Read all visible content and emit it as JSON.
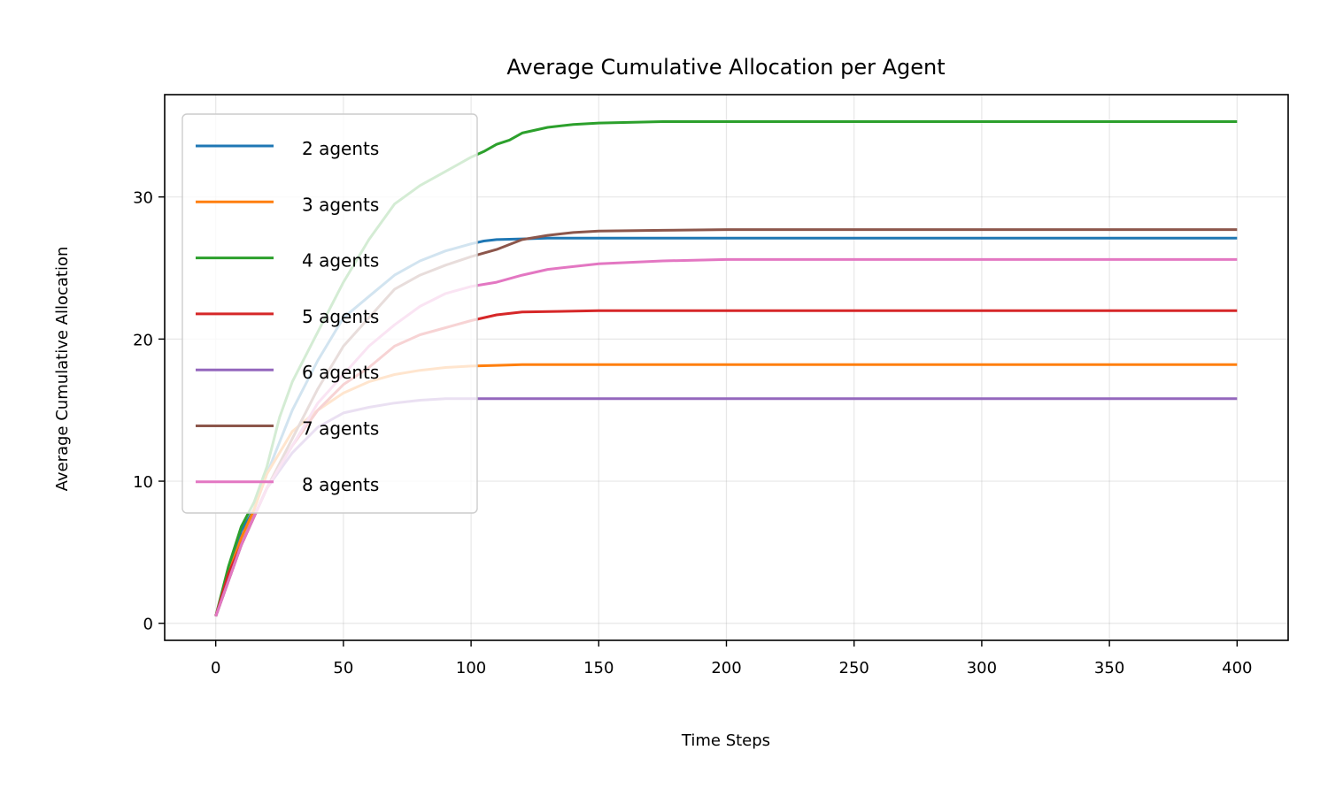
{
  "chart_data": {
    "type": "line",
    "title": "Average Cumulative Allocation per Agent",
    "xlabel": "Time Steps",
    "ylabel": "Average Cumulative Allocation",
    "xlim": [
      -20,
      420
    ],
    "ylim": [
      -1.2,
      37.2
    ],
    "xticks": [
      0,
      50,
      100,
      150,
      200,
      250,
      300,
      350,
      400
    ],
    "yticks": [
      0,
      10,
      20,
      30
    ],
    "grid": true,
    "legend_position": "upper-left",
    "series": [
      {
        "name": "2 agents",
        "color": "#1f77b4",
        "x": [
          0,
          5,
          10,
          15,
          20,
          30,
          40,
          50,
          60,
          70,
          80,
          90,
          100,
          105,
          110,
          120,
          130,
          150,
          200,
          300,
          400
        ],
        "y": [
          0.5,
          3.5,
          6.5,
          8.0,
          10.5,
          15.0,
          18.5,
          21.5,
          23.0,
          24.5,
          25.5,
          26.2,
          26.7,
          26.9,
          27.0,
          27.05,
          27.1,
          27.1,
          27.1,
          27.1,
          27.1
        ]
      },
      {
        "name": "3 agents",
        "color": "#ff7f0e",
        "x": [
          0,
          5,
          10,
          15,
          20,
          30,
          40,
          50,
          60,
          70,
          80,
          90,
          100,
          110,
          120,
          150,
          200,
          300,
          400
        ],
        "y": [
          0.5,
          3.5,
          6.0,
          8.0,
          10.5,
          13.5,
          15.0,
          16.2,
          17.0,
          17.5,
          17.8,
          18.0,
          18.1,
          18.15,
          18.2,
          18.2,
          18.2,
          18.2,
          18.2
        ]
      },
      {
        "name": "4 agents",
        "color": "#2ca02c",
        "x": [
          0,
          5,
          10,
          15,
          20,
          25,
          30,
          40,
          50,
          60,
          70,
          80,
          90,
          100,
          105,
          110,
          115,
          120,
          130,
          140,
          150,
          175,
          200,
          300,
          400
        ],
        "y": [
          0.5,
          4.0,
          6.8,
          8.5,
          11.0,
          14.5,
          17.0,
          20.5,
          24.0,
          27.0,
          29.5,
          30.8,
          31.8,
          32.8,
          33.2,
          33.7,
          34.0,
          34.5,
          34.9,
          35.1,
          35.2,
          35.3,
          35.3,
          35.3,
          35.3
        ]
      },
      {
        "name": "5 agents",
        "color": "#d62728",
        "x": [
          0,
          5,
          10,
          15,
          20,
          30,
          40,
          50,
          60,
          70,
          80,
          90,
          100,
          110,
          120,
          150,
          200,
          300,
          400
        ],
        "y": [
          0.5,
          3.5,
          5.5,
          7.5,
          9.5,
          12.5,
          15.0,
          16.8,
          18.0,
          19.5,
          20.3,
          20.8,
          21.3,
          21.7,
          21.9,
          22.0,
          22.0,
          22.0,
          22.0
        ]
      },
      {
        "name": "6 agents",
        "color": "#9467bd",
        "x": [
          0,
          5,
          10,
          15,
          20,
          30,
          40,
          50,
          60,
          70,
          80,
          90,
          100,
          120,
          150,
          200,
          300,
          400
        ],
        "y": [
          0.5,
          3.0,
          5.5,
          7.5,
          9.5,
          12.0,
          13.8,
          14.8,
          15.2,
          15.5,
          15.7,
          15.8,
          15.8,
          15.8,
          15.8,
          15.8,
          15.8,
          15.8
        ]
      },
      {
        "name": "7 agents",
        "color": "#8c564b",
        "x": [
          0,
          5,
          10,
          15,
          20,
          30,
          40,
          50,
          60,
          70,
          80,
          90,
          100,
          110,
          120,
          130,
          140,
          150,
          175,
          200,
          300,
          400
        ],
        "y": [
          0.5,
          3.0,
          5.5,
          7.5,
          9.5,
          13.0,
          16.5,
          19.5,
          21.5,
          23.5,
          24.5,
          25.2,
          25.8,
          26.3,
          27.0,
          27.3,
          27.5,
          27.6,
          27.65,
          27.7,
          27.7,
          27.7
        ]
      },
      {
        "name": "8 agents",
        "color": "#e377c2",
        "x": [
          0,
          5,
          10,
          15,
          20,
          30,
          40,
          50,
          60,
          70,
          80,
          90,
          100,
          110,
          120,
          130,
          150,
          175,
          200,
          300,
          400
        ],
        "y": [
          0.5,
          3.0,
          5.5,
          7.5,
          9.5,
          12.5,
          15.5,
          17.5,
          19.5,
          21.0,
          22.3,
          23.2,
          23.7,
          24.0,
          24.5,
          24.9,
          25.3,
          25.5,
          25.6,
          25.6,
          25.6
        ]
      }
    ]
  }
}
